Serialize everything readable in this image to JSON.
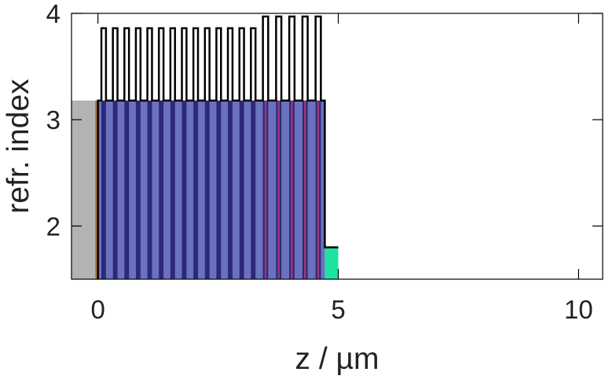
{
  "chart_data": {
    "type": "area",
    "title": "",
    "xlabel": "z / µm",
    "ylabel": "refr. index",
    "xlim": [
      -0.55,
      10.5
    ],
    "ylim": [
      1.5,
      4.0
    ],
    "xticks": [
      0,
      5,
      10
    ],
    "yticks": [
      2,
      3,
      4
    ],
    "grid": false,
    "legend": "none",
    "colors": {
      "substrate": "#b3b3b3",
      "buffer": "#b97a32",
      "layer_light": "#6a72c0",
      "layer_dark": "#2d2878",
      "active_region": "#9a3a78",
      "cap": "#1ee3a0",
      "profile_line": "#000000",
      "frame": "#000000"
    },
    "regions": [
      {
        "name": "substrate",
        "z_start": -0.55,
        "z_end": -0.06,
        "n": 3.18
      },
      {
        "name": "buffer",
        "z_start": -0.06,
        "z_end": 0.0,
        "n": 3.18
      },
      {
        "name": "cap",
        "z_start": 4.72,
        "z_end": 5.0,
        "n": 1.8
      }
    ],
    "dbr_lower": {
      "z_start": 0.0,
      "z_end": 3.35,
      "pairs": 14,
      "n_low": 3.18,
      "n_high": 3.86,
      "high_fraction": 0.4,
      "high_offset_fraction": 0.5
    },
    "dbr_upper": {
      "z_start": 3.35,
      "z_end": 4.72,
      "pairs": 5,
      "n_low": 3.18,
      "n_high": 3.97,
      "high_fraction": 0.4,
      "high_offset_fraction": 0.5,
      "inner_stripe_color": "active_region"
    }
  }
}
